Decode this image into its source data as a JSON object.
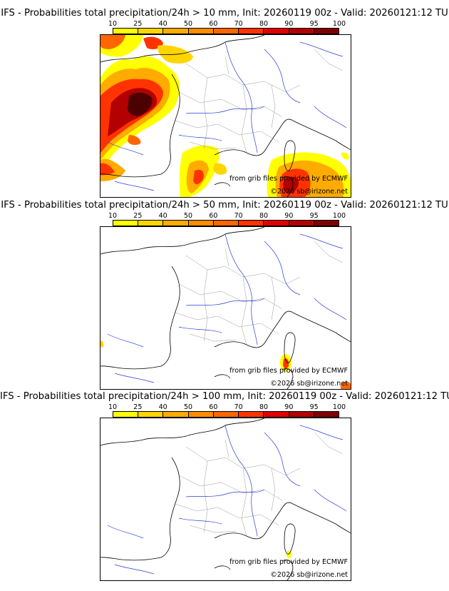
{
  "legend": {
    "labels": [
      "10",
      "25",
      "40",
      "50",
      "60",
      "70",
      "80",
      "90",
      "95",
      "100"
    ],
    "colors": [
      "#ffff00",
      "#ffd500",
      "#ffab00",
      "#ff8c00",
      "#ff6600",
      "#ff3300",
      "#e00000",
      "#b30000",
      "#800000",
      "#4d0000"
    ]
  },
  "credits": {
    "ecmwf": "from grib files provided by ECMWF",
    "copyright": "©2026 sb@irizone.net"
  },
  "panels": [
    {
      "title": "IFS - Probabilities total precipitation/24h > 10 mm, Init: 20260119 00z - Valid: 20260121:12 TU",
      "threshold_mm": 10
    },
    {
      "title": "IFS - Probabilities total precipitation/24h > 50 mm, Init: 20260119 00z - Valid: 20260121:12 TU",
      "threshold_mm": 50
    },
    {
      "title": "IFS - Probabilities total precipitation/24h > 100 mm, Init: 20260119 00z - Valid: 20260121:12 TU",
      "threshold_mm": 100
    }
  ]
}
